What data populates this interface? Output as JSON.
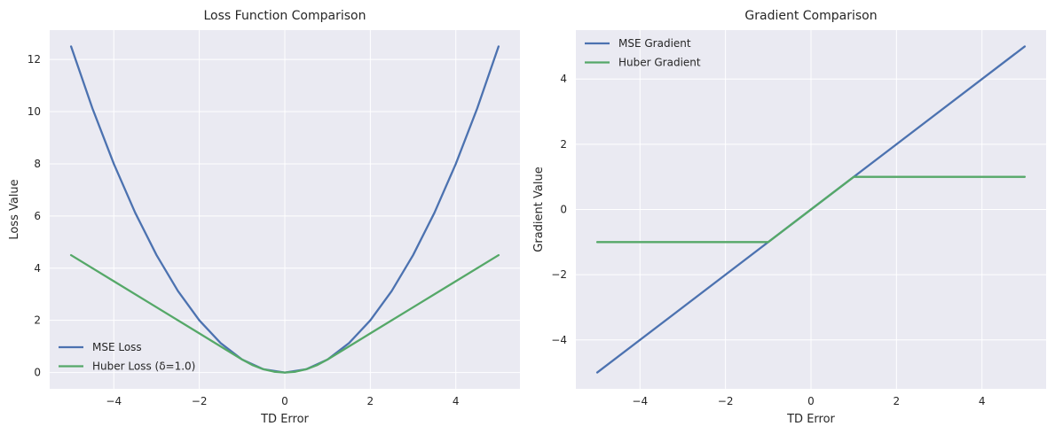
{
  "colors": {
    "background": "#eaeaf2",
    "grid": "#ffffff",
    "series_blue": "#4c72b0",
    "series_green": "#55a868"
  },
  "chart_data": [
    {
      "type": "line",
      "title": "Loss Function Comparison",
      "xlabel": "TD Error",
      "ylabel": "Loss Value",
      "xlim": [
        -5.5,
        5.5
      ],
      "ylim": [
        -0.625,
        13.125
      ],
      "xticks": [
        -4,
        -2,
        0,
        2,
        4
      ],
      "xtick_labels": [
        "−4",
        "−2",
        "0",
        "2",
        "4"
      ],
      "yticks": [
        0,
        2,
        4,
        6,
        8,
        10,
        12
      ],
      "ytick_labels": [
        "0",
        "2",
        "4",
        "6",
        "8",
        "10",
        "12"
      ],
      "grid": true,
      "legend_position": "lower-left",
      "series": [
        {
          "name": "MSE Loss",
          "color_key": "series_blue",
          "x": [
            -5,
            -4.5,
            -4,
            -3.5,
            -3,
            -2.5,
            -2,
            -1.5,
            -1,
            -0.5,
            0,
            0.5,
            1,
            1.5,
            2,
            2.5,
            3,
            3.5,
            4,
            4.5,
            5
          ],
          "y": [
            12.5,
            10.125,
            8,
            6.125,
            4.5,
            3.125,
            2,
            1.125,
            0.5,
            0.125,
            0,
            0.125,
            0.5,
            1.125,
            2,
            3.125,
            4.5,
            6.125,
            8,
            10.125,
            12.5
          ]
        },
        {
          "name": "Huber Loss (δ=1.0)",
          "color_key": "series_green",
          "x": [
            -5,
            -4,
            -3,
            -2,
            -1,
            -0.75,
            -0.5,
            -0.25,
            0,
            0.25,
            0.5,
            0.75,
            1,
            2,
            3,
            4,
            5
          ],
          "y": [
            4.5,
            3.5,
            2.5,
            1.5,
            0.5,
            0.28125,
            0.125,
            0.03125,
            0,
            0.03125,
            0.125,
            0.28125,
            0.5,
            1.5,
            2.5,
            3.5,
            4.5
          ]
        }
      ]
    },
    {
      "type": "line",
      "title": "Gradient Comparison",
      "xlabel": "TD Error",
      "ylabel": "Gradient Value",
      "xlim": [
        -5.5,
        5.5
      ],
      "ylim": [
        -5.5,
        5.5
      ],
      "xticks": [
        -4,
        -2,
        0,
        2,
        4
      ],
      "xtick_labels": [
        "−4",
        "−2",
        "0",
        "2",
        "4"
      ],
      "yticks": [
        -4,
        -2,
        0,
        2,
        4
      ],
      "ytick_labels": [
        "−4",
        "−2",
        "0",
        "2",
        "4"
      ],
      "grid": true,
      "legend_position": "upper-left",
      "series": [
        {
          "name": "MSE Gradient",
          "color_key": "series_blue",
          "x": [
            -5,
            5
          ],
          "y": [
            -5,
            5
          ]
        },
        {
          "name": "Huber Gradient",
          "color_key": "series_green",
          "x": [
            -5,
            -1,
            1,
            5
          ],
          "y": [
            -1,
            -1,
            1,
            1
          ]
        }
      ]
    }
  ]
}
